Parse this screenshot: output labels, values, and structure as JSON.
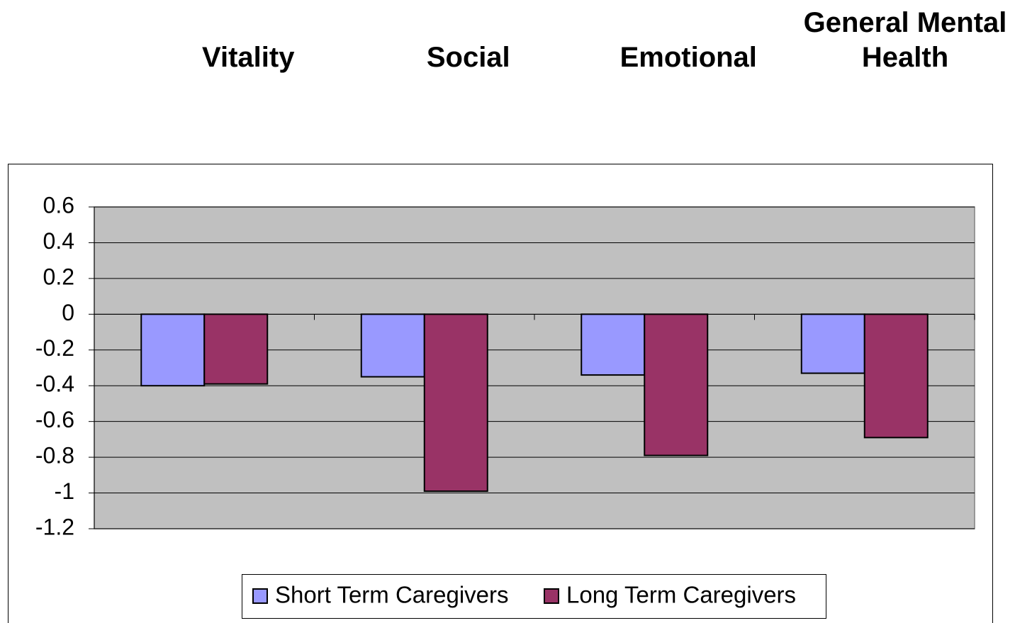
{
  "chart_data": {
    "type": "bar",
    "categories": [
      "Vitality",
      "Social",
      "Emotional",
      "General Mental Health"
    ],
    "series": [
      {
        "name": "Short Term Caregivers",
        "color": "#9999ff",
        "values": [
          -0.4,
          -0.35,
          -0.34,
          -0.33
        ]
      },
      {
        "name": "Long Term Caregivers",
        "color": "#993366",
        "values": [
          -0.39,
          -0.99,
          -0.79,
          -0.69
        ]
      }
    ],
    "ylim": [
      -1.2,
      0.6
    ],
    "yticks": [
      0.6,
      0.4,
      0.2,
      0,
      -0.2,
      -0.4,
      -0.6,
      -0.8,
      -1,
      -1.2
    ],
    "grid": true,
    "legend": "bottom"
  }
}
